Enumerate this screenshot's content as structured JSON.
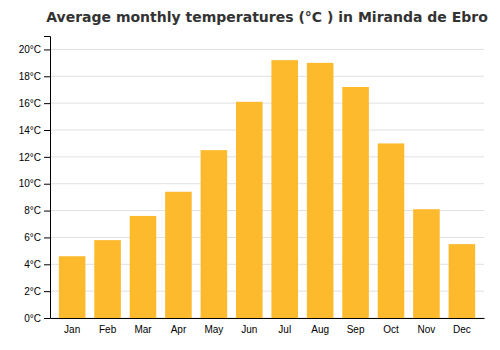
{
  "chart_data": {
    "type": "bar",
    "title": "Average monthly temperatures (°C ) in Miranda de Ebro",
    "categories": [
      "Jan",
      "Feb",
      "Mar",
      "Apr",
      "May",
      "Jun",
      "Jul",
      "Aug",
      "Sep",
      "Oct",
      "Nov",
      "Dec"
    ],
    "values": [
      4.6,
      5.8,
      7.6,
      9.4,
      12.5,
      16.1,
      19.2,
      19.0,
      17.2,
      13.0,
      8.1,
      5.5
    ],
    "color": "#FDBA2C",
    "ylim": [
      0,
      21
    ],
    "yticks": [
      {
        "value": 0,
        "label": "0°C"
      },
      {
        "value": 2,
        "label": "2°C"
      },
      {
        "value": 4,
        "label": "4°C"
      },
      {
        "value": 6,
        "label": "6°C"
      },
      {
        "value": 8,
        "label": "8°C"
      },
      {
        "value": 10,
        "label": "10°C"
      },
      {
        "value": 12,
        "label": "12°C"
      },
      {
        "value": 14,
        "label": "14°C"
      },
      {
        "value": 16,
        "label": "16°C"
      },
      {
        "value": 18,
        "label": "18°C"
      },
      {
        "value": 20,
        "label": "20°C"
      }
    ],
    "grid": true
  }
}
